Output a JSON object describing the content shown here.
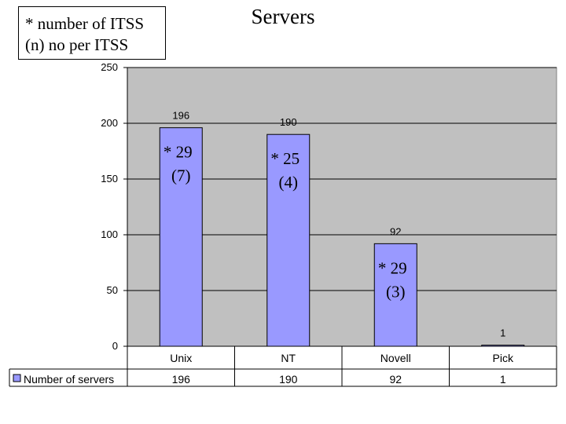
{
  "note_box": {
    "line1": "* number of ITSS",
    "line2": "(n) no per ITSS"
  },
  "chart_data": {
    "type": "bar",
    "title": "Servers",
    "categories": [
      "Unix",
      "NT",
      "Novell",
      "Pick"
    ],
    "series": [
      {
        "name": "Number of servers",
        "values": [
          196,
          190,
          92,
          1
        ]
      }
    ],
    "data_labels": [
      "196",
      "190",
      "92",
      "1"
    ],
    "annotations": [
      {
        "category": "Unix",
        "line1": "* 29",
        "line2": "(7)"
      },
      {
        "category": "NT",
        "line1": "* 25",
        "line2": "(4)"
      },
      {
        "category": "Novell",
        "line1": "* 29",
        "line2": "(3)"
      }
    ],
    "ylim": [
      0,
      250
    ],
    "yticks": [
      0,
      50,
      100,
      150,
      200,
      250
    ],
    "grid": true,
    "legend": "data-table-bottom",
    "colors": {
      "bar": "#9999ff",
      "plot_bg": "#c0c0c0"
    }
  }
}
